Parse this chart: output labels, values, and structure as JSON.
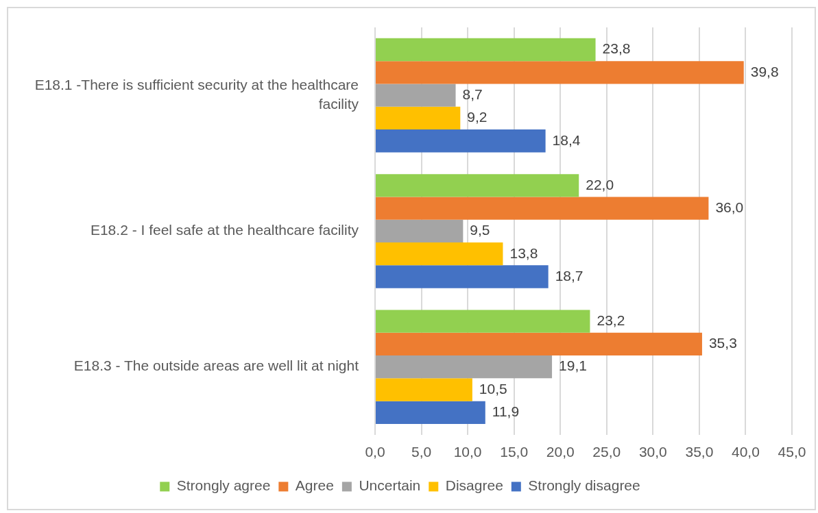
{
  "chart_data": {
    "type": "bar",
    "orientation": "horizontal",
    "categories": [
      "E18.1 -There is sufficient security at the healthcare facility",
      "E18.2 - I feel safe at the healthcare facility",
      "E18.3 - The outside areas are well lit at night"
    ],
    "series": [
      {
        "name": "Strongly agree",
        "color": "#92d050",
        "values": [
          23.8,
          22.0,
          23.2
        ],
        "value_labels": [
          "23,8",
          "22,0",
          "23,2"
        ]
      },
      {
        "name": "Agree",
        "color": "#ed7d31",
        "values": [
          39.8,
          36.0,
          35.3
        ],
        "value_labels": [
          "39,8",
          "36,0",
          "35,3"
        ]
      },
      {
        "name": "Uncertain",
        "color": "#a5a5a5",
        "values": [
          8.7,
          9.5,
          19.1
        ],
        "value_labels": [
          "8,7",
          "9,5",
          "19,1"
        ]
      },
      {
        "name": "Disagree",
        "color": "#ffc000",
        "values": [
          9.2,
          13.8,
          10.5
        ],
        "value_labels": [
          "9,2",
          "13,8",
          "10,5"
        ]
      },
      {
        "name": "Strongly disagree",
        "color": "#4472c4",
        "values": [
          18.4,
          18.7,
          11.9
        ],
        "value_labels": [
          "18,4",
          "18,7",
          "11,9"
        ]
      }
    ],
    "xlim": [
      0,
      45
    ],
    "xticks": [
      {
        "value": 0,
        "label": "0,0"
      },
      {
        "value": 5,
        "label": "5,0"
      },
      {
        "value": 10,
        "label": "10,0"
      },
      {
        "value": 15,
        "label": "15,0"
      },
      {
        "value": 20,
        "label": "20,0"
      },
      {
        "value": 25,
        "label": "25,0"
      },
      {
        "value": 30,
        "label": "30,0"
      },
      {
        "value": 35,
        "label": "35,0"
      },
      {
        "value": 40,
        "label": "40,0"
      },
      {
        "value": 45,
        "label": "45,0"
      }
    ],
    "grid": "x",
    "legend": "bottom"
  }
}
